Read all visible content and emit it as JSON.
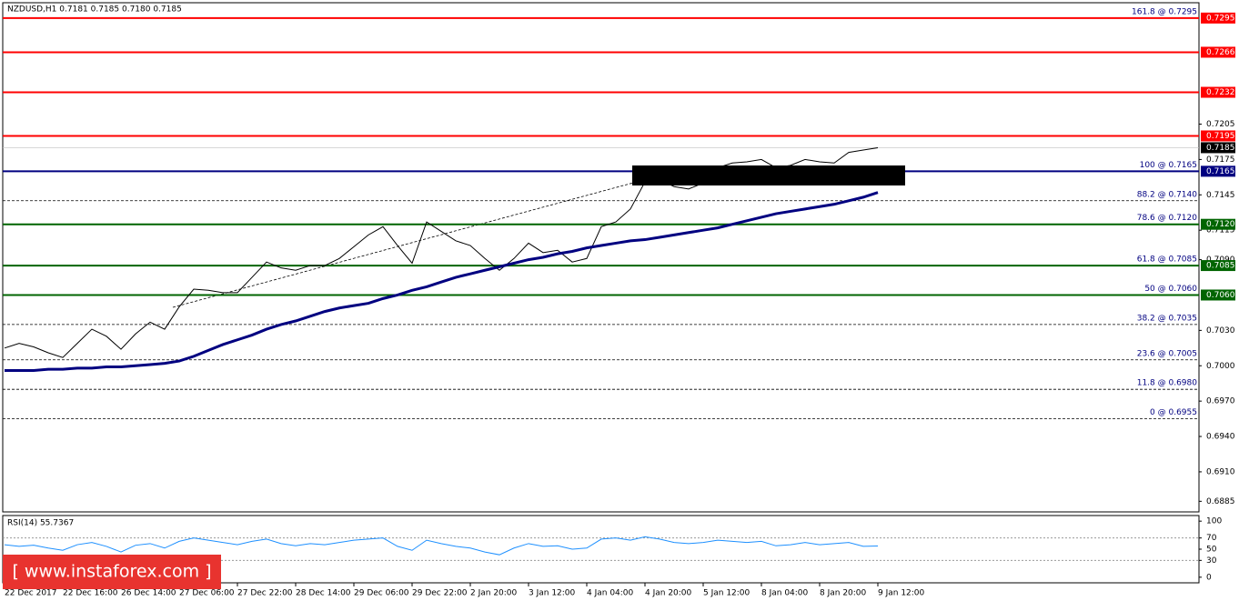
{
  "chart_data": [
    {
      "type": "line",
      "title": "NZDUSD,H1  0.7181 0.7185 0.7180 0.7185",
      "categories": [
        "22 Dec 2017",
        null,
        null,
        null,
        "22 Dec 16:00",
        null,
        null,
        null,
        "26 Dec 14:00",
        null,
        null,
        null,
        "27 Dec 06:00",
        null,
        null,
        null,
        "27 Dec 22:00",
        null,
        null,
        null,
        "28 Dec 14:00",
        null,
        null,
        null,
        "29 Dec 06:00",
        null,
        null,
        null,
        "29 Dec 22:00",
        null,
        null,
        null,
        "2 Jan 20:00",
        null,
        null,
        null,
        "3 Jan 12:00",
        null,
        null,
        null,
        "4 Jan 04:00",
        null,
        null,
        null,
        "4 Jan 20:00",
        null,
        null,
        null,
        "5 Jan 12:00",
        null,
        null,
        null,
        "8 Jan 04:00",
        null,
        null,
        null,
        "8 Jan 20:00",
        null,
        null,
        null,
        "9 Jan 12:00"
      ],
      "series": [
        {
          "color": "#000000",
          "values": [
            0.7015,
            0.7019,
            0.7016,
            0.7011,
            0.7007,
            0.7019,
            0.7031,
            0.7025,
            0.7014,
            0.7027,
            0.7037,
            0.7031,
            0.705,
            0.7065,
            0.7064,
            0.7062,
            0.7062,
            0.7075,
            0.7088,
            0.7083,
            0.7081,
            0.7085,
            0.7085,
            0.7091,
            0.7101,
            0.7111,
            0.7118,
            0.7102,
            0.7087,
            0.7122,
            0.7114,
            0.7106,
            0.7102,
            0.7091,
            0.7081,
            0.7091,
            0.7104,
            0.7096,
            0.7098,
            0.7088,
            0.7091,
            0.7118,
            0.7122,
            0.7133,
            0.7156,
            0.7158,
            0.7152,
            0.715,
            0.7155,
            0.7168,
            0.7172,
            0.7173,
            0.7175,
            0.7168,
            0.717,
            0.7175,
            0.7173,
            0.7172,
            0.7181,
            0.7183,
            0.7185
          ]
        },
        {
          "color": "#000080",
          "values": [
            0.6996,
            0.6996,
            0.6996,
            0.6997,
            0.6997,
            0.6998,
            0.6998,
            0.6999,
            0.6999,
            0.7,
            0.7001,
            0.7002,
            0.7004,
            0.7008,
            0.7013,
            0.7018,
            0.7022,
            0.7026,
            0.7031,
            0.7035,
            0.7038,
            0.7042,
            0.7046,
            0.7049,
            0.7051,
            0.7053,
            0.7057,
            0.706,
            0.7064,
            0.7067,
            0.7071,
            0.7075,
            0.7078,
            0.7081,
            0.7084,
            0.7087,
            0.709,
            0.7092,
            0.7095,
            0.7097,
            0.71,
            0.7102,
            0.7104,
            0.7106,
            0.7107,
            0.7109,
            0.7111,
            0.7113,
            0.7115,
            0.7117,
            0.712,
            0.7123,
            0.7126,
            0.7129,
            0.7131,
            0.7133,
            0.7135,
            0.7137,
            0.714,
            0.7143,
            0.7147
          ]
        }
      ],
      "ylim": [
        0.6876,
        0.7308
      ],
      "yticks": [
        0.7205,
        0.7175,
        0.7145,
        0.7115,
        {
          "value": 0.709,
          "label": "0.7090"
        },
        {
          "value": 0.703,
          "label": "0.7030"
        },
        {
          "value": 0.7,
          "label": "0.7000"
        },
        {
          "value": 0.697,
          "label": "0.6970"
        },
        {
          "value": 0.694,
          "label": "0.6940"
        },
        {
          "value": 0.691,
          "label": "0.6910"
        },
        0.6885
      ],
      "last_price": 0.7185,
      "levels": [
        {
          "value": 0.7295,
          "value_label": "0.7295",
          "color": "#ff0000",
          "label": "161.8 @ 0.7295"
        },
        {
          "value": 0.7266,
          "value_label": "0.7266",
          "color": "#ff0000"
        },
        {
          "value": 0.7232,
          "value_label": "0.7232",
          "color": "#ff0000"
        },
        {
          "value": 0.7195,
          "value_label": "0.7195",
          "color": "#ff0000"
        },
        {
          "value": 0.7165,
          "value_label": "0.7165",
          "color": "#000080",
          "label": "100 @ 0.7165"
        },
        {
          "value": 0.714,
          "color": "#000000",
          "dashed": true,
          "label": "88.2 @ 0.7140"
        },
        {
          "value": 0.712,
          "value_label": "0.7120",
          "color": "#006400",
          "label": "78.6 @ 0.7120"
        },
        {
          "value": 0.7085,
          "value_label": "0.7085",
          "color": "#006400",
          "label": "61.8 @ 0.7085"
        },
        {
          "value": 0.706,
          "value_label": "0.7060",
          "color": "#006400",
          "label": "50 @ 0.7060"
        },
        {
          "value": 0.7035,
          "color": "#000000",
          "dashed": true,
          "label": "38.2 @ 0.7035"
        },
        {
          "value": 0.7005,
          "color": "#000000",
          "dashed": true,
          "label": "23.6 @ 0.7005"
        },
        {
          "value": 0.698,
          "color": "#000000",
          "dashed": true,
          "label": "11.8 @ 0.6980"
        },
        {
          "value": 0.6955,
          "color": "#000000",
          "dashed": true,
          "label": "0 @ 0.6955"
        }
      ]
    },
    {
      "type": "line",
      "title": "RSI(14) 55.7367",
      "series": [
        {
          "color": "#1e90ff",
          "values": [
            58,
            55,
            57,
            52,
            48,
            58,
            62,
            55,
            45,
            57,
            60,
            52,
            64,
            70,
            66,
            62,
            58,
            64,
            68,
            60,
            56,
            60,
            58,
            62,
            66,
            68,
            70,
            55,
            48,
            66,
            60,
            55,
            52,
            45,
            40,
            52,
            60,
            55,
            56,
            50,
            52,
            68,
            70,
            66,
            72,
            68,
            62,
            60,
            62,
            66,
            64,
            62,
            64,
            56,
            58,
            62,
            58,
            60,
            62,
            55,
            55.7367
          ]
        }
      ],
      "ylim": [
        -10,
        110
      ],
      "yticks": [
        100,
        70,
        50,
        30,
        0
      ],
      "dashed_levels": [
        70,
        30
      ]
    }
  ],
  "watermark": "[ www.instaforex.com ]"
}
